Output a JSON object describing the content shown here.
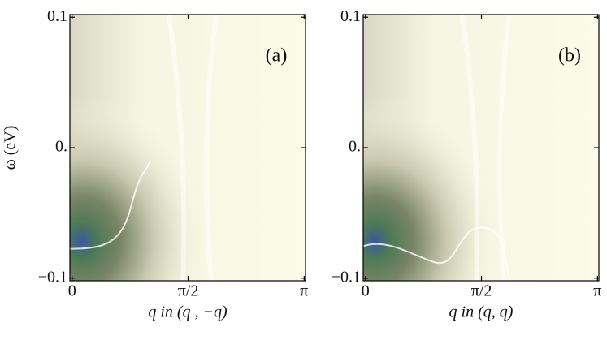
{
  "chart_data": [
    {
      "type": "heatmap",
      "panel_label": "(a)",
      "xlabel": "q  in (q , −q)",
      "ylabel": "ω (eV)",
      "xlim": [
        -0.03,
        3.16
      ],
      "ylim": [
        -0.102,
        0.102
      ],
      "xticks": [
        0,
        {
          "value": 1.5708,
          "label": "π/2"
        },
        {
          "value": 3.1416,
          "label": "π"
        }
      ],
      "yticks": [
        {
          "value": -0.1,
          "label": "−0.1"
        },
        {
          "value": 0,
          "label": "0."
        },
        0.1
      ]
    },
    {
      "type": "heatmap",
      "panel_label": "(b)",
      "xlabel": "q  in (q, q)",
      "xlim": [
        -0.03,
        3.16
      ],
      "ylim": [
        -0.102,
        0.102
      ],
      "xticks": [
        0,
        {
          "value": 1.5708,
          "label": "π/2"
        },
        {
          "value": 3.1416,
          "label": "π"
        }
      ],
      "yticks": [
        {
          "value": -0.1,
          "label": "−0.1"
        },
        {
          "value": 0,
          "label": "0."
        },
        0.1
      ]
    }
  ]
}
